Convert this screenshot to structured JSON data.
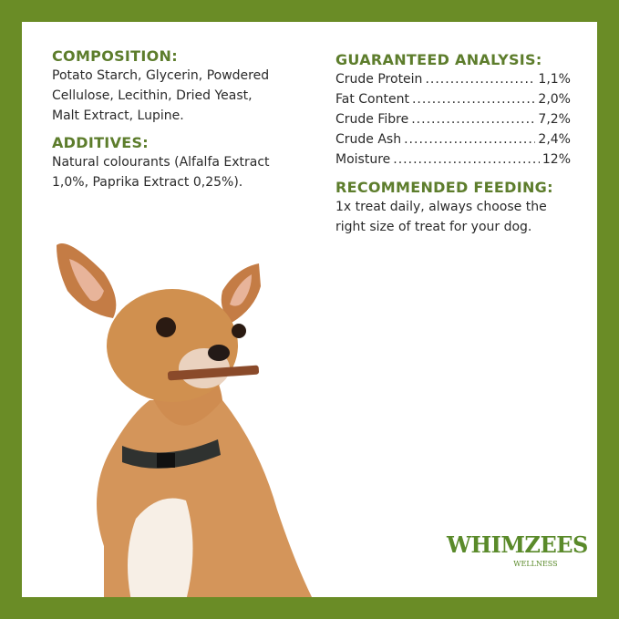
{
  "composition": {
    "title": "COMPOSITION:",
    "text": "Potato Starch, Glycerin, Powdered Cellulose, Lecithin, Dried Yeast, Malt Extract, Lupine."
  },
  "additives": {
    "title": "ADDITIVES:",
    "text": "Natural colourants (Alfalfa Extract 1,0%, Paprika Extract 0,25%)."
  },
  "analysis": {
    "title": "GUARANTEED ANALYSIS:",
    "rows": [
      {
        "label": "Crude Protein",
        "value": "1,1%"
      },
      {
        "label": "Fat Content",
        "value": "2,0%"
      },
      {
        "label": "Crude Fibre",
        "value": "7,2%"
      },
      {
        "label": "Crude Ash",
        "value": "2,4%"
      },
      {
        "label": "Moisture",
        "value": "12%"
      }
    ]
  },
  "feeding": {
    "title": "RECOMMENDED FEEDING:",
    "text": "1x treat daily, always choose the right size of treat for your dog."
  },
  "logo": {
    "brand": "WHIMZEES",
    "sub": "WELLNESS"
  },
  "colors": {
    "border": "#6a8c26",
    "heading": "#5d7d2c"
  }
}
